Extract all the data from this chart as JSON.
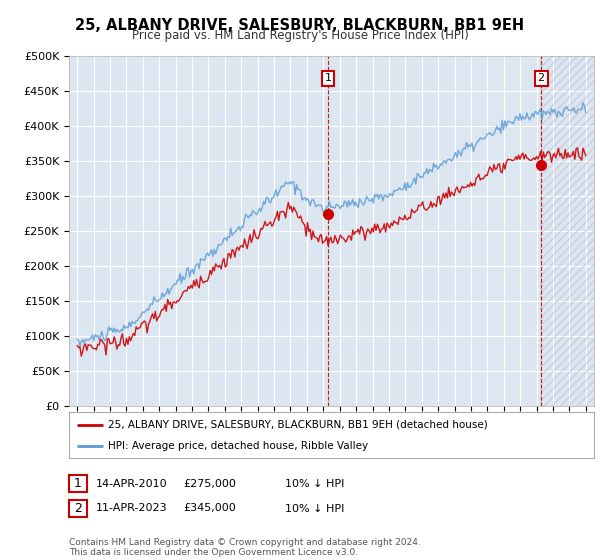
{
  "title": "25, ALBANY DRIVE, SALESBURY, BLACKBURN, BB1 9EH",
  "subtitle": "Price paid vs. HM Land Registry's House Price Index (HPI)",
  "legend_label_red": "25, ALBANY DRIVE, SALESBURY, BLACKBURN, BB1 9EH (detached house)",
  "legend_label_blue": "HPI: Average price, detached house, Ribble Valley",
  "sale1_date": "14-APR-2010",
  "sale1_price": "£275,000",
  "sale1_hpi": "10% ↓ HPI",
  "sale2_date": "11-APR-2023",
  "sale2_price": "£345,000",
  "sale2_hpi": "10% ↓ HPI",
  "footer": "Contains HM Land Registry data © Crown copyright and database right 2024.\nThis data is licensed under the Open Government Licence v3.0.",
  "sale1_x": 2010.28,
  "sale1_y": 275000,
  "sale2_x": 2023.28,
  "sale2_y": 345000,
  "ylim": [
    0,
    500000
  ],
  "xlim": [
    1994.5,
    2026.5
  ],
  "background_color": "#ffffff",
  "plot_bg_color": "#dce6f1",
  "grid_color": "#ffffff",
  "red_color": "#cc0000",
  "blue_color": "#5b9bd5",
  "marker_box_color": "#cc0000"
}
